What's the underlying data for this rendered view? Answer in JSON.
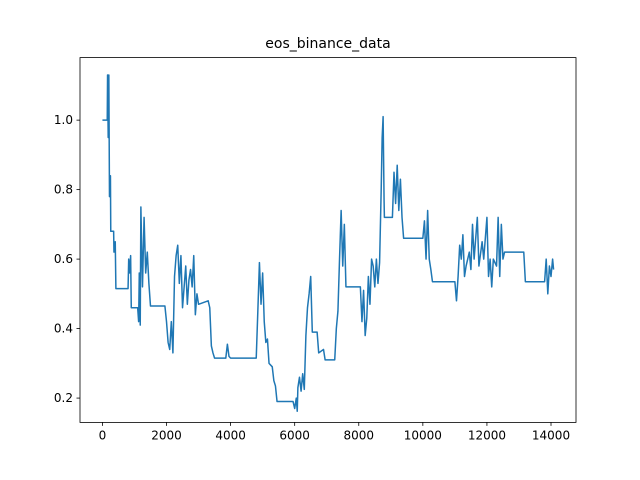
{
  "chart_data": {
    "type": "line",
    "title": "eos_binance_data",
    "x": [
      0,
      150,
      160,
      180,
      200,
      220,
      250,
      260,
      350,
      360,
      400,
      420,
      800,
      820,
      850,
      880,
      900,
      1100,
      1130,
      1150,
      1180,
      1200,
      1250,
      1300,
      1350,
      1400,
      1450,
      1500,
      1950,
      2000,
      2050,
      2100,
      2150,
      2200,
      2250,
      2300,
      2350,
      2400,
      2450,
      2500,
      2600,
      2650,
      2700,
      2750,
      2800,
      2850,
      2900,
      2950,
      3000,
      3300,
      3350,
      3400,
      3450,
      3500,
      3850,
      3900,
      3950,
      4000,
      4800,
      4850,
      4900,
      4950,
      5000,
      5050,
      5100,
      5150,
      5200,
      5300,
      5350,
      5400,
      5450,
      5950,
      6000,
      6050,
      6080,
      6100,
      6150,
      6200,
      6250,
      6300,
      6350,
      6400,
      6450,
      6500,
      6550,
      6700,
      6750,
      6900,
      6950,
      7250,
      7300,
      7350,
      7400,
      7450,
      7500,
      7550,
      7600,
      8050,
      8100,
      8150,
      8200,
      8250,
      8300,
      8350,
      8400,
      8450,
      8500,
      8550,
      8600,
      8650,
      8700,
      8730,
      8760,
      8790,
      8800,
      9050,
      9100,
      9150,
      9200,
      9250,
      9300,
      9350,
      9400,
      10000,
      10050,
      10100,
      10150,
      10200,
      10250,
      10300,
      11000,
      11050,
      11100,
      11150,
      11200,
      11250,
      11300,
      11350,
      11450,
      11500,
      11550,
      11600,
      11700,
      11750,
      11850,
      11900,
      12000,
      12050,
      12100,
      12150,
      12200,
      12300,
      12350,
      12400,
      12450,
      12500,
      12550,
      13150,
      13200,
      13800,
      13850,
      13900,
      13950,
      14000,
      14050,
      14080
    ],
    "series": [
      {
        "name": "eos_binance_data",
        "color": "#1f77b4",
        "values": [
          1.0,
          1.0,
          1.13,
          0.95,
          1.13,
          0.78,
          0.84,
          0.68,
          0.68,
          0.62,
          0.65,
          0.515,
          0.515,
          0.6,
          0.56,
          0.61,
          0.46,
          0.46,
          0.42,
          0.56,
          0.41,
          0.75,
          0.52,
          0.72,
          0.56,
          0.62,
          0.53,
          0.465,
          0.465,
          0.42,
          0.36,
          0.34,
          0.42,
          0.33,
          0.55,
          0.61,
          0.64,
          0.53,
          0.61,
          0.46,
          0.58,
          0.47,
          0.54,
          0.57,
          0.52,
          0.61,
          0.44,
          0.5,
          0.47,
          0.48,
          0.46,
          0.35,
          0.33,
          0.315,
          0.315,
          0.355,
          0.32,
          0.315,
          0.315,
          0.45,
          0.59,
          0.47,
          0.56,
          0.42,
          0.36,
          0.37,
          0.3,
          0.29,
          0.25,
          0.235,
          0.19,
          0.19,
          0.17,
          0.2,
          0.162,
          0.23,
          0.26,
          0.22,
          0.27,
          0.225,
          0.38,
          0.46,
          0.5,
          0.55,
          0.39,
          0.39,
          0.33,
          0.34,
          0.31,
          0.31,
          0.4,
          0.45,
          0.6,
          0.74,
          0.58,
          0.7,
          0.52,
          0.52,
          0.42,
          0.51,
          0.38,
          0.43,
          0.55,
          0.47,
          0.6,
          0.58,
          0.52,
          0.6,
          0.53,
          0.59,
          0.8,
          0.95,
          1.01,
          0.77,
          0.72,
          0.72,
          0.85,
          0.76,
          0.87,
          0.74,
          0.83,
          0.72,
          0.66,
          0.66,
          0.71,
          0.6,
          0.74,
          0.6,
          0.57,
          0.535,
          0.535,
          0.48,
          0.55,
          0.64,
          0.6,
          0.67,
          0.55,
          0.58,
          0.62,
          0.57,
          0.7,
          0.6,
          0.72,
          0.58,
          0.65,
          0.6,
          0.72,
          0.55,
          0.6,
          0.52,
          0.6,
          0.58,
          0.72,
          0.55,
          0.7,
          0.6,
          0.62,
          0.62,
          0.535,
          0.535,
          0.6,
          0.5,
          0.58,
          0.55,
          0.6,
          0.57
        ]
      }
    ],
    "xlim": [
      -700,
      14780
    ],
    "xticks": [
      0,
      2000,
      4000,
      6000,
      8000,
      10000,
      12000,
      14000
    ],
    "ylim": [
      0.13,
      1.18
    ],
    "yticks": [
      0.2,
      0.4,
      0.6,
      0.8,
      {
        "value": 1,
        "label": "1.0"
      }
    ]
  }
}
